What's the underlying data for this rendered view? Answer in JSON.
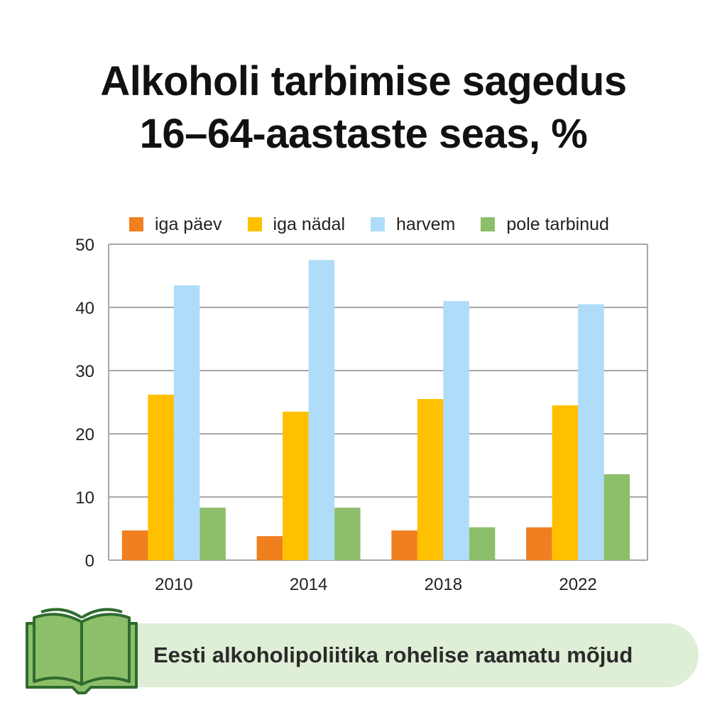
{
  "title": {
    "line1": "Alkoholi tarbimise sagedus",
    "line2": "16–64-aastaste seas, %"
  },
  "footer": {
    "text": "Eesti alkoholipoliitika rohelise raamatu mõjud",
    "icon": "open-book-icon"
  },
  "colors": {
    "iga_paev": "#f07f1f",
    "iga_nadal": "#ffc000",
    "harvem": "#afdcf9",
    "pole_tarbinud": "#8dbf6a",
    "grid": "#a6a6a6",
    "banner": "#dfeed6",
    "book_fill": "#8dbf6a",
    "book_stroke": "#2f6b2f"
  },
  "chart_data": {
    "type": "bar",
    "categories": [
      "2010",
      "2014",
      "2018",
      "2022"
    ],
    "series": [
      {
        "name": "iga päev",
        "values": [
          4.7,
          3.8,
          4.7,
          5.2
        ]
      },
      {
        "name": "iga nädal",
        "values": [
          26.2,
          23.5,
          25.5,
          24.5
        ]
      },
      {
        "name": "harvem",
        "values": [
          43.5,
          47.5,
          41.0,
          40.5
        ]
      },
      {
        "name": "pole tarbinud",
        "values": [
          8.3,
          8.3,
          5.2,
          13.6
        ]
      }
    ],
    "ylim": [
      0,
      50
    ],
    "yticks": [
      "0",
      "10",
      "20",
      "30",
      "40",
      "50"
    ],
    "grid": true,
    "legend": "top"
  }
}
